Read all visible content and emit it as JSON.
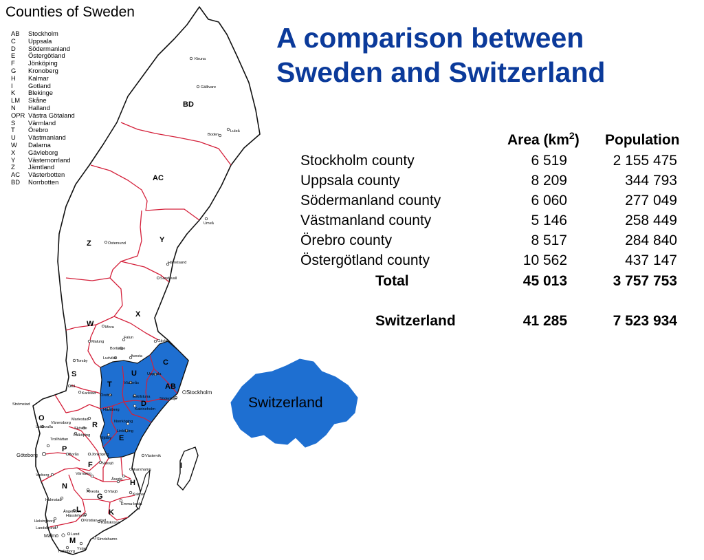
{
  "map": {
    "title": "Counties of Sweden",
    "legend": [
      {
        "code": "AB",
        "name": "Stockholm"
      },
      {
        "code": "C",
        "name": "Uppsala"
      },
      {
        "code": "D",
        "name": "Södermanland"
      },
      {
        "code": "E",
        "name": "Östergötland"
      },
      {
        "code": "F",
        "name": "Jönköping"
      },
      {
        "code": "G",
        "name": "Kronoberg"
      },
      {
        "code": "H",
        "name": "Kalmar"
      },
      {
        "code": "I",
        "name": "Gotland"
      },
      {
        "code": "K",
        "name": "Blekinge"
      },
      {
        "code": "LM",
        "name": "Skåne"
      },
      {
        "code": "N",
        "name": "Halland"
      },
      {
        "code": "OPR",
        "name": "Västra Götaland"
      },
      {
        "code": "S",
        "name": "Värmland"
      },
      {
        "code": "T",
        "name": "Örebro"
      },
      {
        "code": "U",
        "name": "Västmanland"
      },
      {
        "code": "W",
        "name": "Dalarna"
      },
      {
        "code": "X",
        "name": "Gävleborg"
      },
      {
        "code": "Y",
        "name": "Västernorrland"
      },
      {
        "code": "Z",
        "name": "Jämtland"
      },
      {
        "code": "AC",
        "name": "Västerbotten"
      },
      {
        "code": "BD",
        "name": "Norrbotten"
      }
    ],
    "region_codes": {
      "BD": "BD",
      "AC": "AC",
      "Z": "Z",
      "Y": "Y",
      "X": "X",
      "W": "W",
      "S": "S",
      "T": "T",
      "U": "U",
      "C": "C",
      "AB": "AB",
      "D": "D",
      "E": "E",
      "O": "O",
      "R": "R",
      "P": "P",
      "F": "F",
      "N": "N",
      "G": "G",
      "H": "H",
      "I": "I",
      "K": "K",
      "L": "L",
      "M": "M"
    },
    "cities": {
      "kiruna": "Kiruna",
      "gallivare": "Gällivare",
      "boden": "Boden",
      "lulea": "Luleå",
      "umea": "Umeå",
      "ostersund": "Östersund",
      "harnosand": "Härnösand",
      "sundsvall": "Sundsvall",
      "mora": "Mora",
      "malung": "Malung",
      "falun": "Falun",
      "gavle": "Gävle",
      "borlange": "Borlänge",
      "ludvika": "Ludvika",
      "avesta": "Avesta",
      "torsby": "Torsby",
      "uppsala": "Uppsala",
      "vasteras": "Västerås",
      "stockholm": "Stockholm",
      "kil": "Kil",
      "karlstad": "Karlstad",
      "orebro": "Örebro",
      "eskilstuna": "Eskilstuna",
      "sodertalje": "Södertälje",
      "katrineholm": "Katrineholm",
      "hallsberg": "Hallsberg",
      "stromstad": "Strömstad",
      "mariestad": "Mariestad",
      "norrkoping": "Norrköping",
      "linkoping": "Linköping",
      "vanersborg": "Vänersborg",
      "skovde": "Skövde",
      "uddevalla": "Uddevalla",
      "falkoping": "Falköping",
      "mjolby": "Mjölby",
      "trollhattan": "Trollhättan",
      "goteborg": "Göteborg",
      "boras": "Borås",
      "jonkoping": "Jönköping",
      "nassjo": "Nässjö",
      "vastervik": "Västervik",
      "varberg": "Varberg",
      "varnamo": "Värnamo",
      "oskarshamn": "Oskarshamn",
      "eksjo_aseda": "Åseda",
      "alvesta": "Alvesta",
      "vaxjo": "Växjö",
      "halmstad": "Halmstad",
      "kalmar": "Kalmar",
      "emmaboda": "Emma-boda",
      "angelholm": "Ängelholm",
      "hassleholm": "Hässleholm",
      "kristianstad": "Kristian-stad",
      "helsingborg": "Helsingborg",
      "karlskrona": "Karlskrona",
      "landskrona": "Landskrona",
      "lund": "Lund",
      "malmo": "Malmö",
      "simrishamn": "Simrishamn",
      "ystad": "Ystad",
      "trelleborg": "Trelleborg"
    },
    "switzerland_label": "Switzerland",
    "colors": {
      "highlight": "#1e6fd1",
      "county_border": "#d4203a",
      "outline": "#111111"
    }
  },
  "headline": {
    "line1": "A comparison between",
    "line2": "Sweden and Switzerland"
  },
  "table": {
    "col_area": "Area (km",
    "col_area_sup": "2",
    "col_area_close": ")",
    "col_population": "Population",
    "rows": [
      {
        "name": "Stockholm county",
        "area": "6 519",
        "population": "2 155 475"
      },
      {
        "name": "Uppsala county",
        "area": "8 209",
        "population": "344 793"
      },
      {
        "name": "Södermanland county",
        "area": "6 060",
        "population": "277 049"
      },
      {
        "name": "Västmanland county",
        "area": "5 146",
        "population": "258 449"
      },
      {
        "name": "Örebro county",
        "area": "8 517",
        "population": "284 840"
      },
      {
        "name": "Östergötland county",
        "area": "10 562",
        "population": "437 147"
      }
    ],
    "total": {
      "name": "Total",
      "area": "45 013",
      "population": "3 757 753"
    },
    "switzerland": {
      "name": "Switzerland",
      "area": "41 285",
      "population": "7 523 934"
    }
  }
}
